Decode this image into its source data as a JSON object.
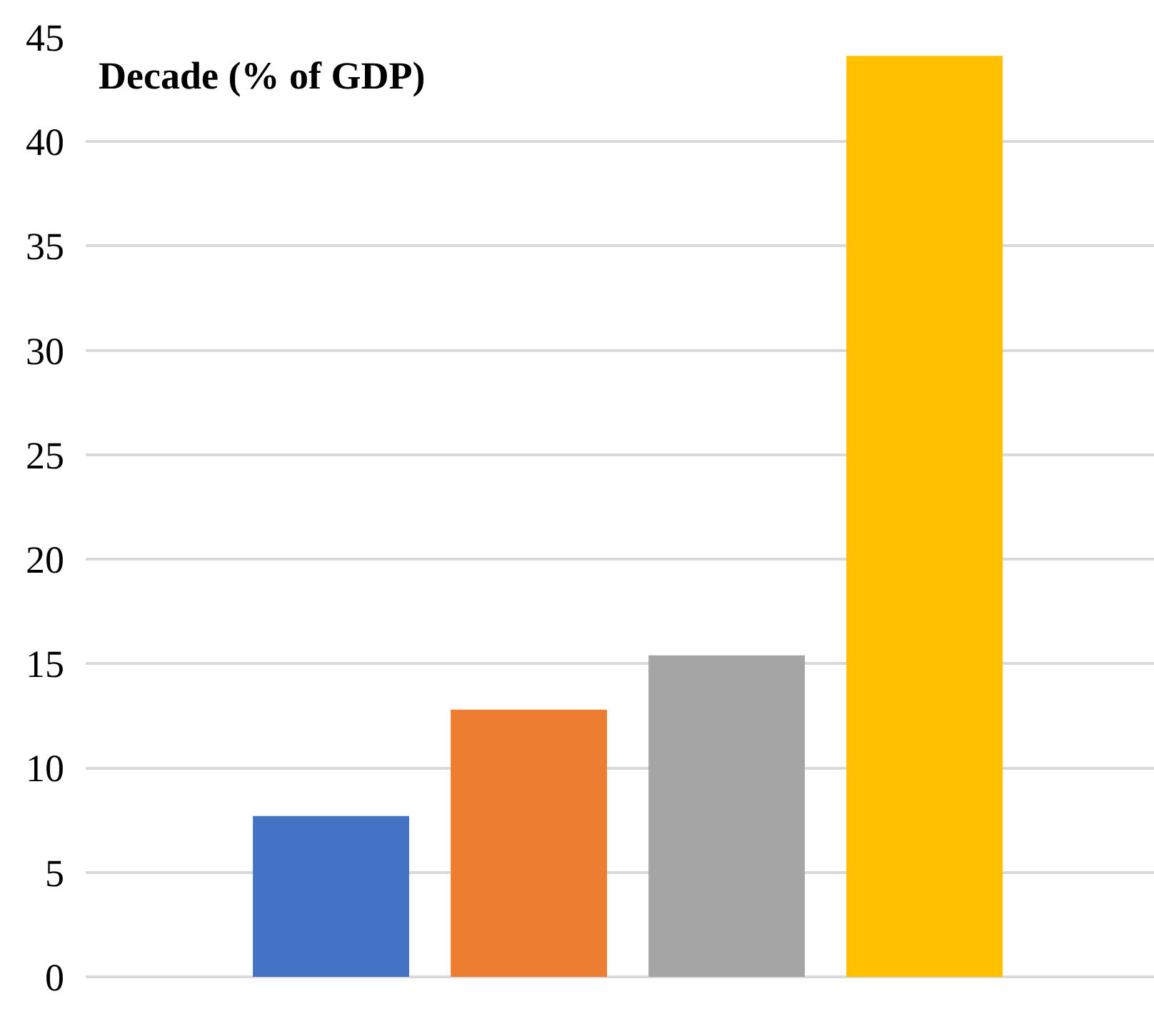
{
  "chart_data": {
    "type": "bar",
    "title": "Decade (% of GDP)",
    "categories": [
      null,
      null,
      null,
      null
    ],
    "values": [
      7.7,
      12.8,
      15.4,
      44.1
    ],
    "colors": [
      "#4472c4",
      "#ed7d31",
      "#a5a5a5",
      "#ffc000"
    ],
    "ylim": [
      0,
      45
    ],
    "yticks": [
      0,
      5,
      10,
      15,
      20,
      25,
      30,
      35,
      40,
      45
    ],
    "grid": "y",
    "legend": false
  }
}
